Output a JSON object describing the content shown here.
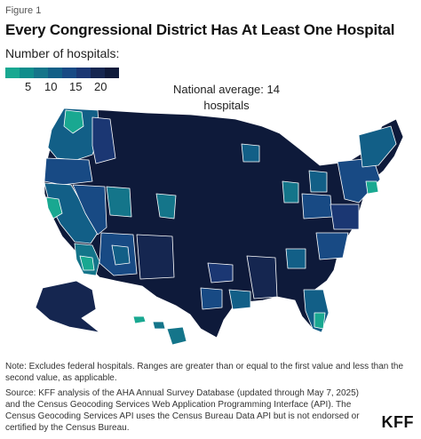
{
  "figure_label": "Figure 1",
  "title": "Every Congressional District Has At Least One Hospital",
  "legend": {
    "title": "Number of hospitals:",
    "colors": [
      "#19a891",
      "#0f8d8c",
      "#14758a",
      "#125f87",
      "#184a84",
      "#1b3773",
      "#152650",
      "#0e1a3a"
    ],
    "tick_labels": [
      "5",
      "10",
      "15",
      "20"
    ]
  },
  "annotation": {
    "line1": "National average: 14",
    "line2": "hospitals"
  },
  "map": {
    "colors": {
      "dark": "#0e1a3a",
      "navy": "#152650",
      "blue": "#1b3773",
      "mid": "#184a84",
      "steel": "#125f87",
      "teal": "#14758a",
      "green": "#19a891",
      "border": "#ffffff"
    }
  },
  "note": "Note: Excludes federal hospitals. Ranges are greater than or equal to the first value and less than the second value, as applicable.",
  "source": "Source: KFF analysis of the AHA Annual Survey Database (updated through May 7, 2025) and the Census Geocoding Services Web Application Programming Interface (API). The Census Geocoding Services API uses the Census Bureau Data API but is not endorsed or certified by the Census Bureau.",
  "logo": "KFF"
}
